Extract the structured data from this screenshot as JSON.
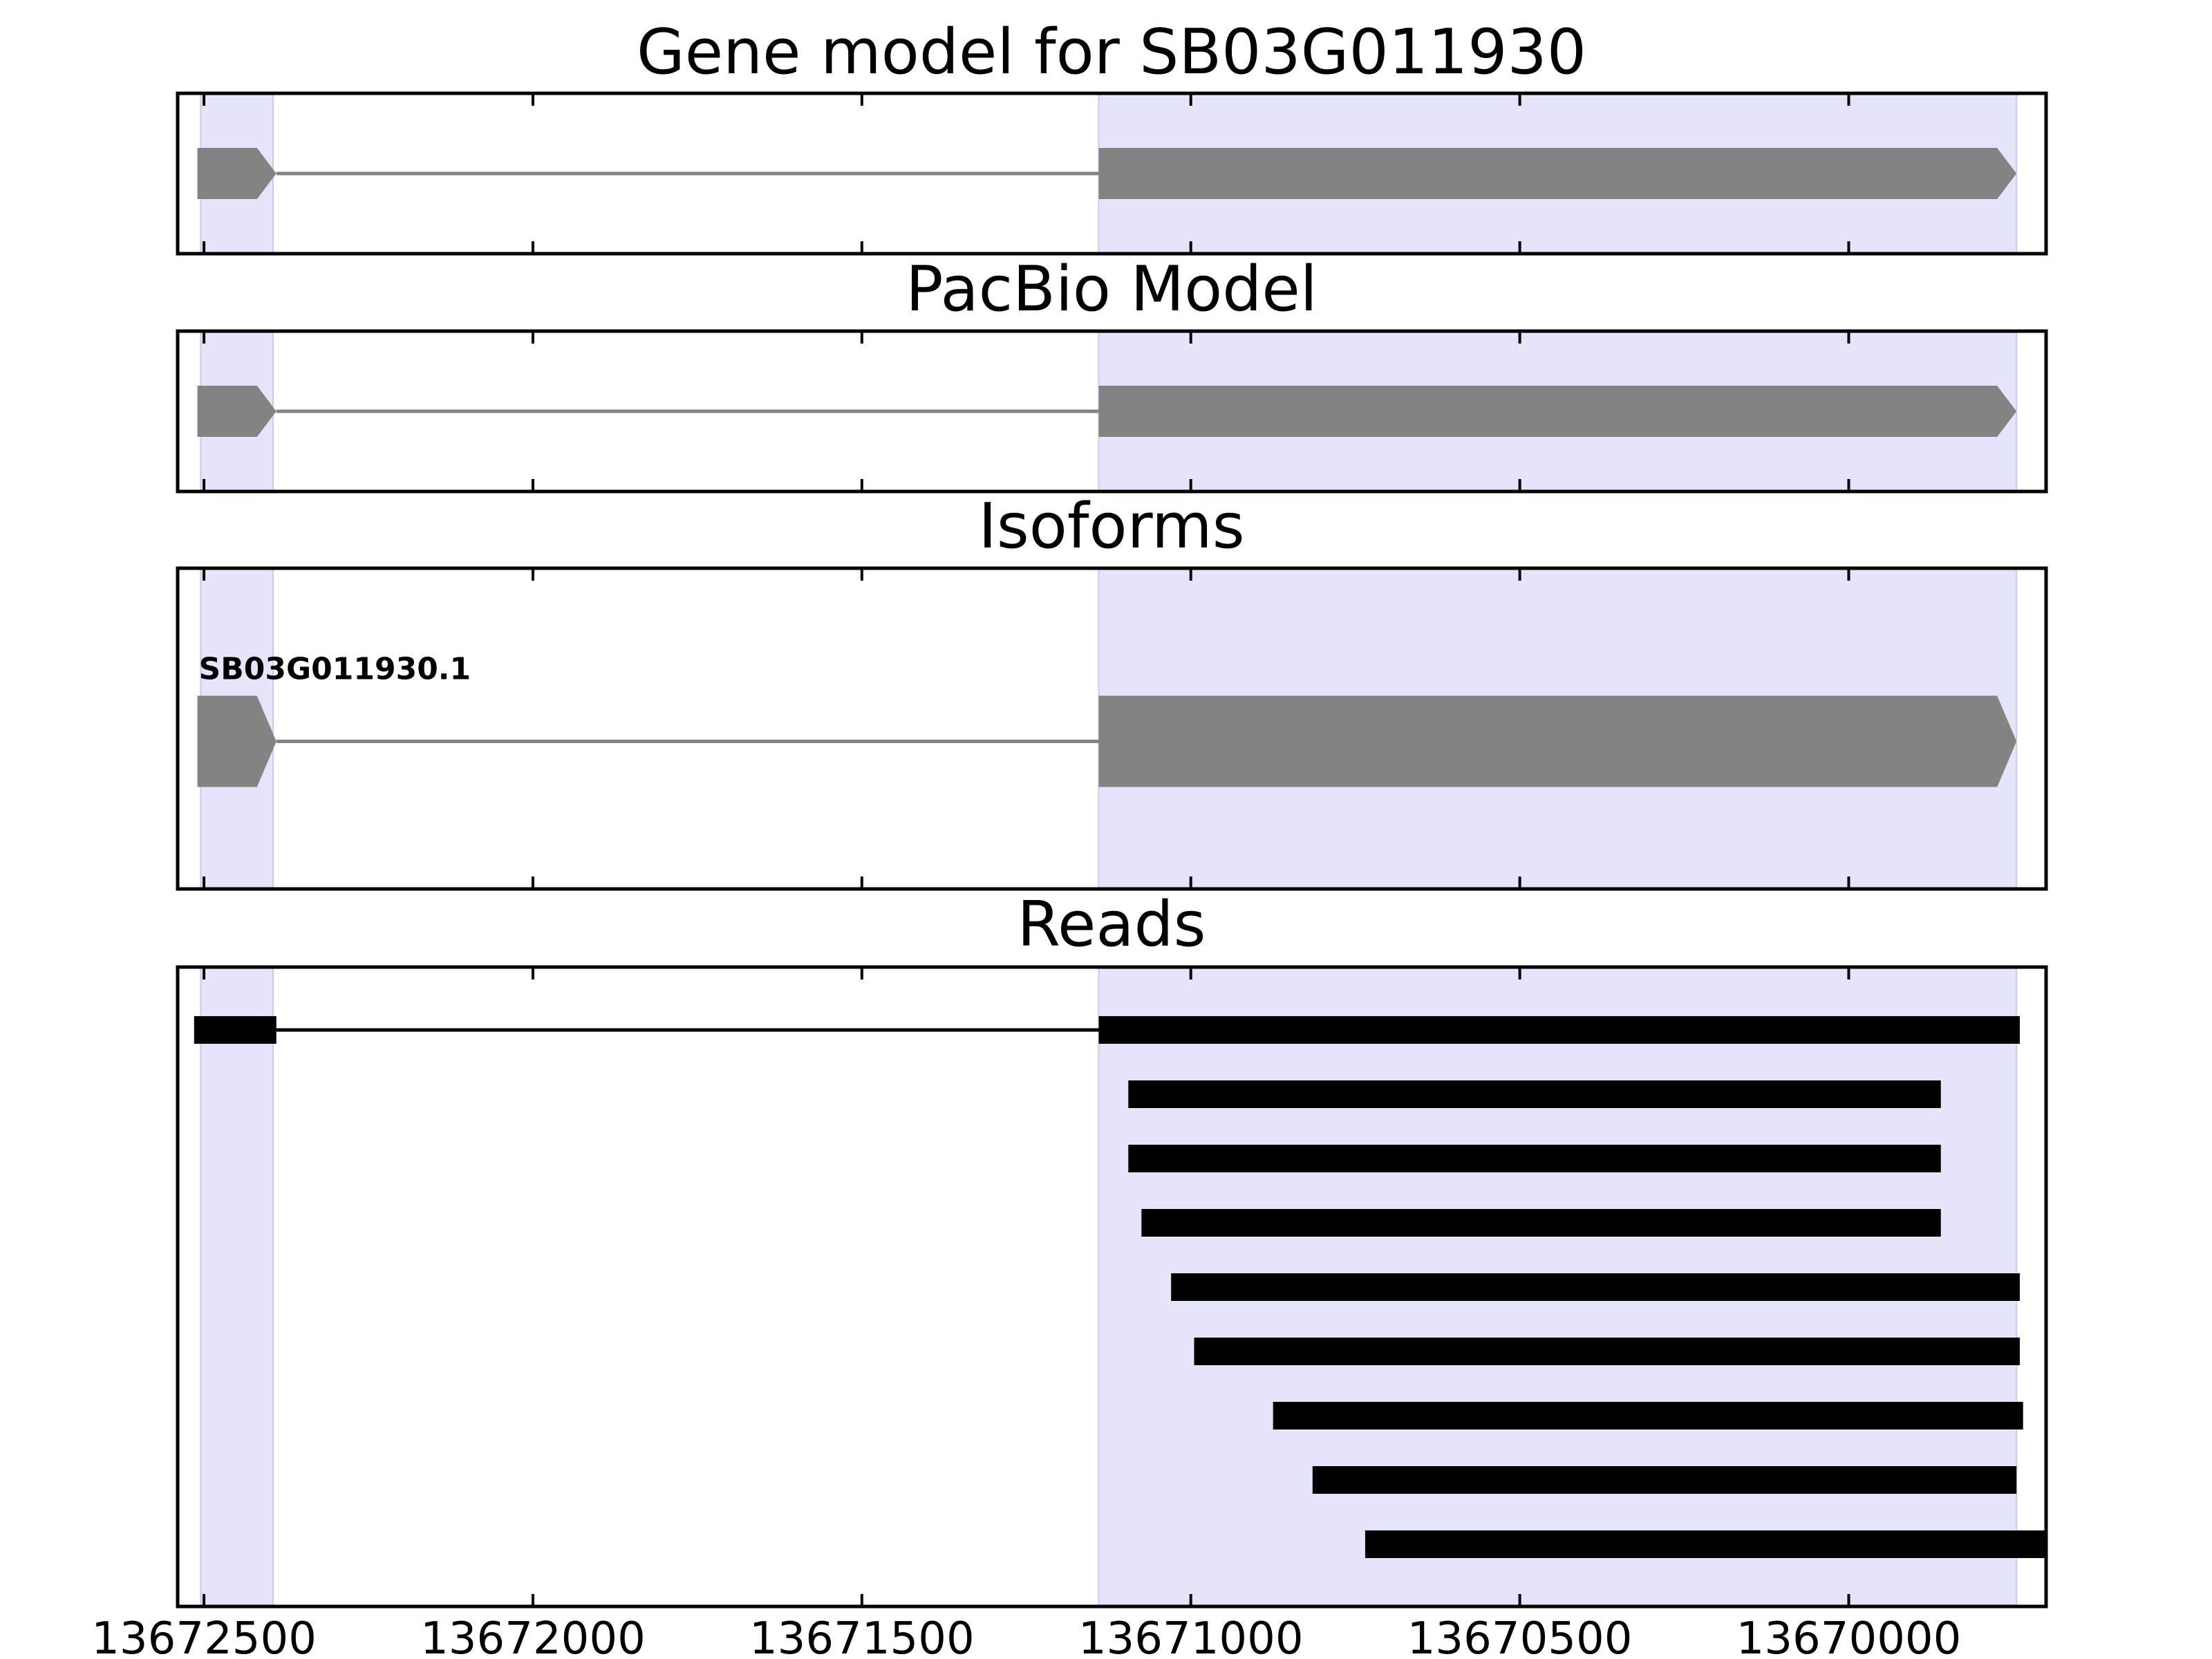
{
  "chart_data": {
    "type": "gene-track",
    "x_axis": {
      "reversed": true,
      "xlim": [
        13672540,
        13669700
      ],
      "ticks": [
        13672500,
        13672000,
        13671500,
        13671000,
        13670500,
        13670000
      ],
      "tick_labels": [
        "13672500",
        "13672000",
        "13671500",
        "13671000",
        "13670500",
        "13670000"
      ]
    },
    "highlight_color": "#e4e4fa",
    "exon_color": "#838383",
    "read_color": "#000000",
    "highlight_regions": [
      {
        "start": 13672505,
        "end": 13672395
      },
      {
        "start": 13671140,
        "end": 13669745
      }
    ],
    "panels": [
      {
        "id": "gene-model",
        "title": "Gene model for SB03G011930",
        "exons": [
          {
            "start": 13672510,
            "end": 13672390
          },
          {
            "start": 13671140,
            "end": 13669745
          }
        ],
        "strand": "-"
      },
      {
        "id": "pacbio-model",
        "title": "PacBio Model",
        "exons": [
          {
            "start": 13672510,
            "end": 13672390
          },
          {
            "start": 13671140,
            "end": 13669745
          }
        ],
        "strand": "-"
      },
      {
        "id": "isoforms",
        "title": "Isoforms",
        "isoform_name": "SB03G011930.1",
        "exons": [
          {
            "start": 13672510,
            "end": 13672390
          },
          {
            "start": 13671140,
            "end": 13669745
          }
        ],
        "strand": "-"
      },
      {
        "id": "reads",
        "title": "Reads",
        "reads": [
          {
            "blocks": [
              [
                13672515,
                13672390
              ],
              [
                13671140,
                13669740
              ]
            ]
          },
          {
            "blocks": [
              [
                13671095,
                13669860
              ]
            ]
          },
          {
            "blocks": [
              [
                13671095,
                13669860
              ]
            ]
          },
          {
            "blocks": [
              [
                13671075,
                13669860
              ]
            ]
          },
          {
            "blocks": [
              [
                13671030,
                13669740
              ]
            ]
          },
          {
            "blocks": [
              [
                13670995,
                13669740
              ]
            ]
          },
          {
            "blocks": [
              [
                13670875,
                13669735
              ]
            ]
          },
          {
            "blocks": [
              [
                13670815,
                13669745
              ]
            ]
          },
          {
            "blocks": [
              [
                13670735,
                13669700
              ]
            ]
          }
        ]
      }
    ]
  }
}
